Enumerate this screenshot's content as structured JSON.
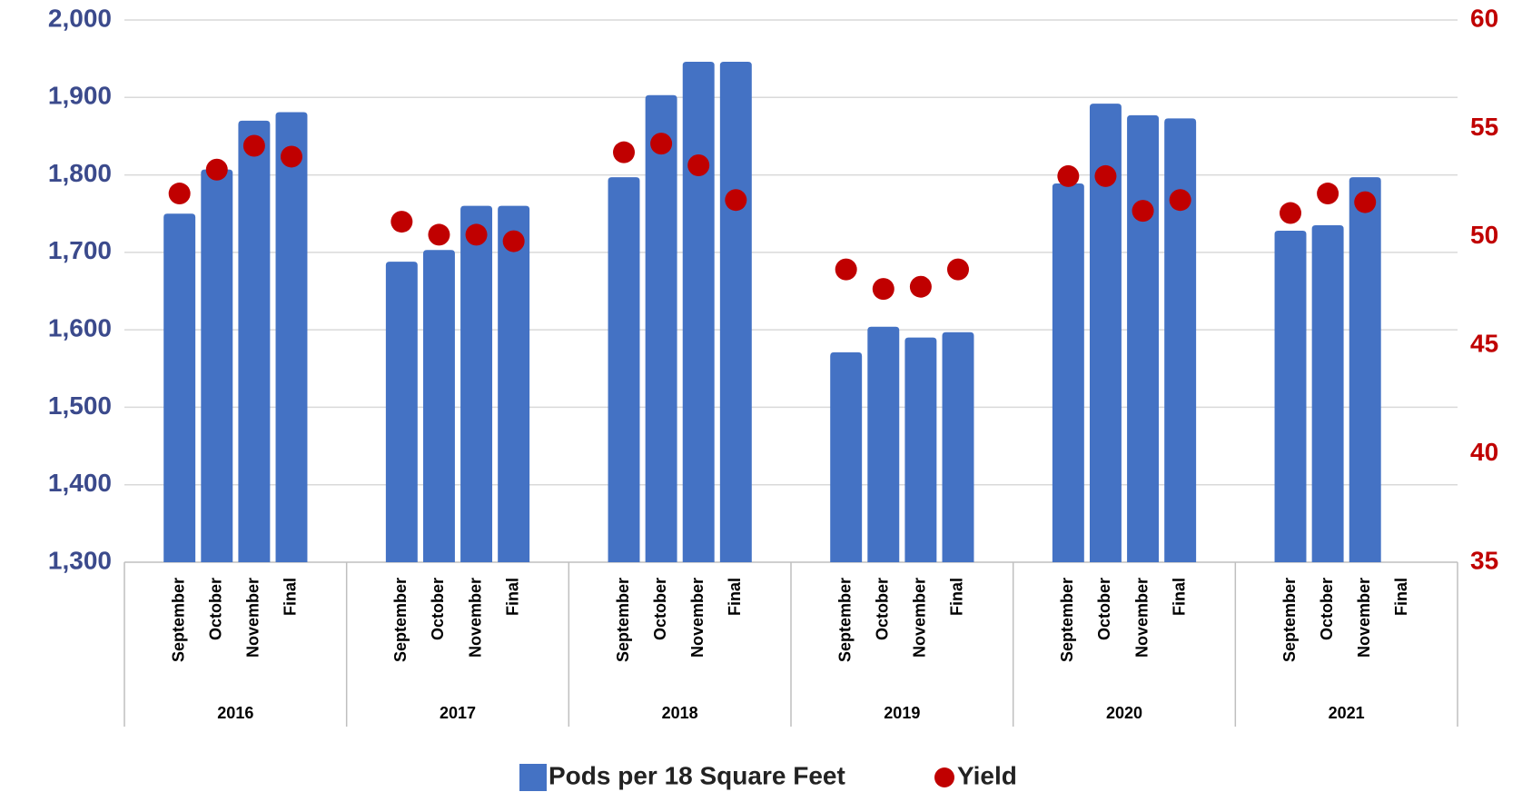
{
  "chart_data": {
    "type": "bar",
    "categories": [
      "September",
      "October",
      "November",
      "Final",
      "September",
      "October",
      "November",
      "Final",
      "September",
      "October",
      "November",
      "Final",
      "September",
      "October",
      "November",
      "Final",
      "September",
      "October",
      "November",
      "Final",
      "September",
      "October",
      "November",
      "Final"
    ],
    "groups": [
      "2016",
      "2017",
      "2018",
      "2019",
      "2020",
      "2021"
    ],
    "series": [
      {
        "name": "Pods per 18 Square Feet",
        "color": "#4472c4",
        "type": "bar",
        "values": [
          1750,
          1807,
          1870,
          1881,
          1688,
          1703,
          1760,
          1760,
          1797,
          1903,
          1946,
          1946,
          1571,
          1604,
          1590,
          1597,
          1789,
          1892,
          1877,
          1873,
          1728,
          1735,
          1797,
          null
        ]
      },
      {
        "name": "Yield",
        "color": "#c00000",
        "type": "scatter",
        "axis": "y2",
        "values": [
          52.0,
          53.1,
          54.2,
          53.7,
          50.7,
          50.1,
          50.1,
          49.8,
          53.9,
          54.3,
          53.3,
          51.7,
          48.5,
          47.6,
          47.7,
          48.5,
          52.8,
          52.8,
          51.2,
          51.7,
          51.1,
          52.0,
          51.6,
          null
        ]
      }
    ],
    "ylim": [
      1300,
      2000
    ],
    "yticks": [
      {
        "value": 1300,
        "label": "1,300"
      },
      {
        "value": 1400,
        "label": "1,400"
      },
      {
        "value": 1500,
        "label": "1,500"
      },
      {
        "value": 1600,
        "label": "1,600"
      },
      {
        "value": 1700,
        "label": "1,700"
      },
      {
        "value": 1800,
        "label": "1,800"
      },
      {
        "value": 1900,
        "label": "1,900"
      },
      {
        "value": 2000,
        "label": "2,000"
      }
    ],
    "y2lim": [
      35,
      60
    ],
    "y2ticks": [
      35,
      40,
      45,
      50,
      55,
      60
    ],
    "grid": true,
    "legend": "bottom"
  }
}
